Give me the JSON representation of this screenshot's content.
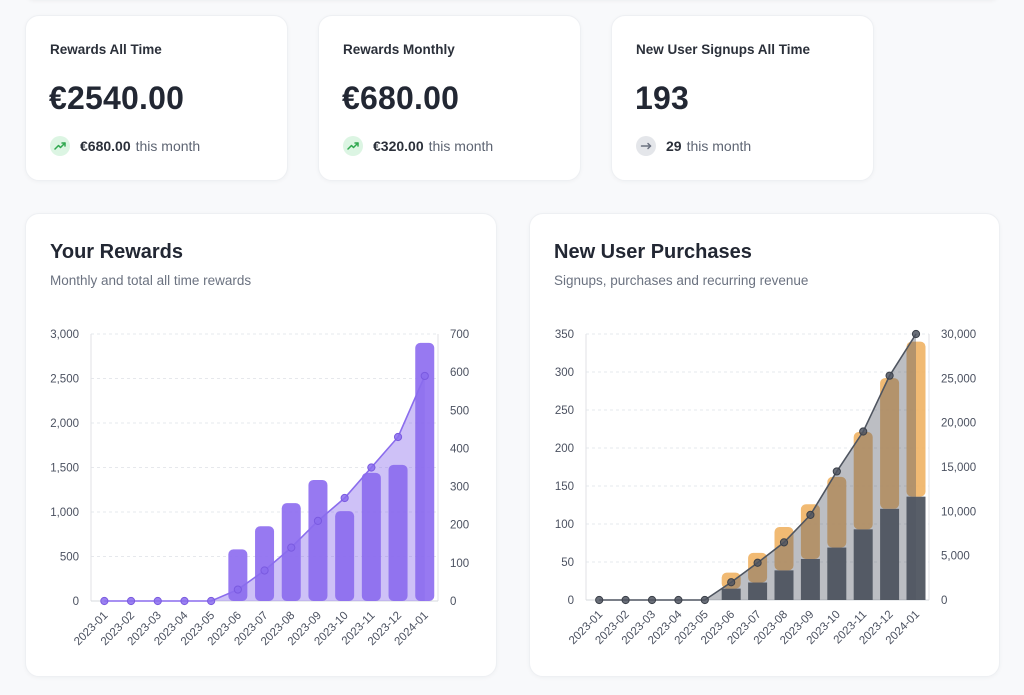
{
  "stats": [
    {
      "title": "Rewards All Time",
      "value": "€2540.00",
      "trend_amount": "€680.00",
      "trend_suffix": "this month",
      "trend": "up"
    },
    {
      "title": "Rewards Monthly",
      "value": "€680.00",
      "trend_amount": "€320.00",
      "trend_suffix": "this month",
      "trend": "up"
    },
    {
      "title": "New User Signups All Time",
      "value": "193",
      "trend_amount": "29",
      "trend_suffix": "this month",
      "trend": "flat"
    }
  ],
  "colors": {
    "purple_bar": "#8e6ef0",
    "purple_line": "#8a6ced",
    "orange": "#f0b264",
    "dark": "#4f5560",
    "trend_up": "#2fa84f",
    "trend_flat": "#6b7280"
  },
  "chart_data": [
    {
      "type": "bar",
      "title": "Your Rewards",
      "subtitle": "Monthly and total all time rewards",
      "categories": [
        "2023-01",
        "2023-02",
        "2023-03",
        "2023-04",
        "2023-05",
        "2023-06",
        "2023-07",
        "2023-08",
        "2023-09",
        "2023-10",
        "2023-11",
        "2023-12",
        "2024-01"
      ],
      "series": [
        {
          "type": "bar",
          "axis": "left",
          "values": [
            0,
            0,
            0,
            0,
            0,
            580,
            840,
            1100,
            1360,
            1010,
            1440,
            1530,
            2900
          ]
        },
        {
          "type": "area-line",
          "axis": "right",
          "values": [
            0,
            0,
            0,
            0,
            0,
            30,
            80,
            140,
            210,
            270,
            350,
            430,
            590
          ]
        }
      ],
      "y_left": {
        "min": 0,
        "max": 3000,
        "ticks": [
          "0",
          "500",
          "1,000",
          "1,500",
          "2,000",
          "2,500",
          "3,000"
        ]
      },
      "y_right": {
        "min": 0,
        "max": 700,
        "ticks": [
          "0",
          "100",
          "200",
          "300",
          "400",
          "500",
          "600",
          "700"
        ]
      },
      "grid": true
    },
    {
      "type": "bar",
      "title": "New User Purchases",
      "subtitle": "Signups, purchases and recurring revenue",
      "categories": [
        "2023-01",
        "2023-02",
        "2023-03",
        "2023-04",
        "2023-05",
        "2023-06",
        "2023-07",
        "2023-08",
        "2023-09",
        "2023-10",
        "2023-11",
        "2023-12",
        "2024-01"
      ],
      "series": [
        {
          "type": "bar",
          "axis": "left",
          "stacked": true,
          "color": "dark",
          "values": [
            0,
            0,
            0,
            0,
            0,
            15,
            23,
            39,
            54,
            69,
            93,
            120,
            136
          ]
        },
        {
          "type": "bar",
          "axis": "left",
          "stacked": true,
          "color": "orange",
          "values": [
            0,
            0,
            0,
            0,
            0,
            21,
            39,
            57,
            72,
            93,
            128,
            172,
            204
          ]
        },
        {
          "type": "area-line",
          "axis": "right",
          "values": [
            0,
            0,
            0,
            0,
            0,
            2000,
            4200,
            6500,
            9600,
            14500,
            19000,
            25300,
            30000
          ]
        }
      ],
      "y_left": {
        "min": 0,
        "max": 350,
        "ticks": [
          "0",
          "50",
          "100",
          "150",
          "200",
          "250",
          "300",
          "350"
        ]
      },
      "y_right": {
        "min": 0,
        "max": 30000,
        "ticks": [
          "0",
          "5,000",
          "10,000",
          "15,000",
          "20,000",
          "25,000",
          "30,000"
        ]
      },
      "grid": true
    }
  ]
}
